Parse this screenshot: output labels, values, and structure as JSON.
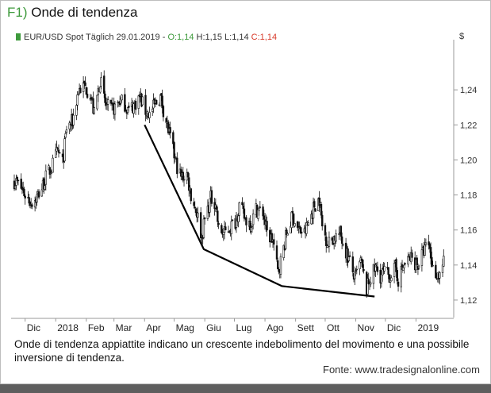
{
  "figure_label": "F1)",
  "figure_title": "Onde di tendenza",
  "legend": {
    "instrument": "EUR/USD Spot Täglich",
    "date": "29.01.2019",
    "separator": "-",
    "open": "O:1,14",
    "high": "H:1,15",
    "low": "L:1,14",
    "close": "C:1,14"
  },
  "currency": "$",
  "caption": "Onde di tendenza appiattite indicano un crescente indebolimento del movimento e una possibile inversione di tendenza.",
  "source": "Fonte: www.tradesignalonline.com",
  "colors": {
    "label": "#3e9a3c",
    "open": "#3e9a3c",
    "close": "#d83a2a",
    "candles": "#111111",
    "trendline": "#000000"
  },
  "chart_data": {
    "type": "candlestick",
    "x_type": "month",
    "ylim": [
      1.11,
      1.265
    ],
    "ytick_values": [
      1.12,
      1.14,
      1.16,
      1.18,
      1.2,
      1.22,
      1.24
    ],
    "ytick_labels": [
      "1,12",
      "1,14",
      "1,16",
      "1,18",
      "1,20",
      "1,22",
      "1,24"
    ],
    "xtick_labels": [
      "Dic",
      "2018",
      "Feb",
      "Mar",
      "Apr",
      "Mag",
      "Giu",
      "Lug",
      "Ago",
      "Sett",
      "Ott",
      "Nov",
      "Dic",
      "2019"
    ],
    "xtick_dates": [
      "2017-12",
      "2018-01",
      "2018-02",
      "2018-03",
      "2018-04",
      "2018-05",
      "2018-06",
      "2018-07",
      "2018-08",
      "2018-09",
      "2018-10",
      "2018-11",
      "2018-12",
      "2019-01"
    ],
    "xlim": [
      "2017-11-20",
      "2019-02-05"
    ],
    "price_path": [
      [
        "2017-11-20",
        1.188
      ],
      [
        "2017-11-25",
        1.186
      ],
      [
        "2017-12-01",
        1.18
      ],
      [
        "2017-12-07",
        1.176
      ],
      [
        "2017-12-12",
        1.178
      ],
      [
        "2017-12-18",
        1.184
      ],
      [
        "2017-12-22",
        1.19
      ],
      [
        "2017-12-28",
        1.196
      ],
      [
        "2018-01-03",
        1.205
      ],
      [
        "2018-01-08",
        1.198
      ],
      [
        "2018-01-12",
        1.218
      ],
      [
        "2018-01-18",
        1.222
      ],
      [
        "2018-01-24",
        1.24
      ],
      [
        "2018-01-30",
        1.242
      ],
      [
        "2018-02-05",
        1.238
      ],
      [
        "2018-02-09",
        1.226
      ],
      [
        "2018-02-15",
        1.246
      ],
      [
        "2018-02-20",
        1.232
      ],
      [
        "2018-02-26",
        1.228
      ],
      [
        "2018-03-02",
        1.23
      ],
      [
        "2018-03-07",
        1.234
      ],
      [
        "2018-03-12",
        1.232
      ],
      [
        "2018-03-16",
        1.228
      ],
      [
        "2018-03-22",
        1.232
      ],
      [
        "2018-03-27",
        1.236
      ],
      [
        "2018-04-02",
        1.228
      ],
      [
        "2018-04-06",
        1.226
      ],
      [
        "2018-04-12",
        1.232
      ],
      [
        "2018-04-17",
        1.236
      ],
      [
        "2018-04-23",
        1.222
      ],
      [
        "2018-04-27",
        1.212
      ],
      [
        "2018-05-03",
        1.198
      ],
      [
        "2018-05-08",
        1.19
      ],
      [
        "2018-05-14",
        1.192
      ],
      [
        "2018-05-18",
        1.18
      ],
      [
        "2018-05-24",
        1.17
      ],
      [
        "2018-05-29",
        1.156
      ],
      [
        "2018-06-01",
        1.166
      ],
      [
        "2018-06-07",
        1.178
      ],
      [
        "2018-06-12",
        1.176
      ],
      [
        "2018-06-15",
        1.16
      ],
      [
        "2018-06-21",
        1.158
      ],
      [
        "2018-06-27",
        1.162
      ],
      [
        "2018-07-02",
        1.165
      ],
      [
        "2018-07-06",
        1.174
      ],
      [
        "2018-07-12",
        1.166
      ],
      [
        "2018-07-18",
        1.164
      ],
      [
        "2018-07-23",
        1.172
      ],
      [
        "2018-07-30",
        1.17
      ],
      [
        "2018-08-03",
        1.158
      ],
      [
        "2018-08-09",
        1.154
      ],
      [
        "2018-08-14",
        1.136
      ],
      [
        "2018-08-17",
        1.142
      ],
      [
        "2018-08-23",
        1.158
      ],
      [
        "2018-08-29",
        1.168
      ],
      [
        "2018-09-04",
        1.16
      ],
      [
        "2018-09-10",
        1.158
      ],
      [
        "2018-09-14",
        1.164
      ],
      [
        "2018-09-20",
        1.174
      ],
      [
        "2018-09-25",
        1.178
      ],
      [
        "2018-09-28",
        1.162
      ],
      [
        "2018-10-04",
        1.152
      ],
      [
        "2018-10-10",
        1.156
      ],
      [
        "2018-10-16",
        1.158
      ],
      [
        "2018-10-22",
        1.148
      ],
      [
        "2018-10-27",
        1.14
      ],
      [
        "2018-10-31",
        1.132
      ],
      [
        "2018-11-06",
        1.142
      ],
      [
        "2018-11-12",
        1.126
      ],
      [
        "2018-11-15",
        1.132
      ],
      [
        "2018-11-21",
        1.138
      ],
      [
        "2018-11-26",
        1.134
      ],
      [
        "2018-11-30",
        1.136
      ],
      [
        "2018-12-05",
        1.134
      ],
      [
        "2018-12-11",
        1.138
      ],
      [
        "2018-12-14",
        1.132
      ],
      [
        "2018-12-20",
        1.14
      ],
      [
        "2018-12-27",
        1.144
      ],
      [
        "2019-01-03",
        1.14
      ],
      [
        "2019-01-09",
        1.148
      ],
      [
        "2019-01-14",
        1.152
      ],
      [
        "2019-01-18",
        1.138
      ],
      [
        "2019-01-24",
        1.134
      ],
      [
        "2019-01-29",
        1.142
      ]
    ],
    "trendline": [
      [
        "2018-04-01",
        1.22
      ],
      [
        "2018-05-31",
        1.149
      ],
      [
        "2018-08-18",
        1.128
      ],
      [
        "2018-11-20",
        1.122
      ]
    ]
  }
}
